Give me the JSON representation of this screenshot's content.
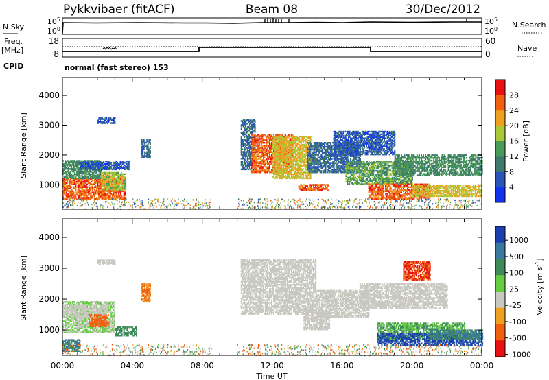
{
  "header": {
    "station": "Pykkvibaer (fitACF)",
    "beam": "Beam 08",
    "date": "30/Dec/2012"
  },
  "side_labels": {
    "nsky": "N.Sky",
    "nsky_hi": "10^5",
    "nsky_lo": "10^0",
    "nsearch": "N.Search",
    "nsearch_hi": "10^5",
    "nsearch_lo": "10^0",
    "freq": "Freq.",
    "freq_unit": "[MHz]",
    "freq_hi": "18",
    "freq_lo": "8",
    "nave": "Nave",
    "nave_hi": "60",
    "nave_lo": "0",
    "cpid": "CPID",
    "cpid_text": "normal (fast stereo) 153"
  },
  "chart_data": [
    {
      "type": "heatmap",
      "title": "",
      "quantity": "Power",
      "xlabel": "Time UT",
      "ylabel": "Slant Range [km]",
      "colorbar_label": "Power [dB]",
      "x_ticks": [
        "00:00",
        "04:00",
        "08:00",
        "12:00",
        "16:00",
        "20:00",
        "00:00"
      ],
      "x_range_hours": [
        0,
        24
      ],
      "y_ticks": [
        1000,
        2000,
        3000,
        4000
      ],
      "y_range_km": [
        180,
        4600
      ],
      "colorbar_ticks": [
        "4",
        "8",
        "12",
        "16",
        "20",
        "24",
        "28"
      ],
      "colorbar_colors": [
        "#1133ee",
        "#2a55b8",
        "#3e7a6a",
        "#4a9a58",
        "#aac838",
        "#f0a020",
        "#f06010",
        "#e81010"
      ],
      "regions": [
        {
          "t": [
            0.0,
            3.6
          ],
          "r": [
            500,
            1200
          ],
          "level": 26
        },
        {
          "t": [
            0.0,
            2.2
          ],
          "r": [
            1200,
            1800
          ],
          "level": 12
        },
        {
          "t": [
            2.2,
            3.6
          ],
          "r": [
            800,
            1400
          ],
          "level": 18
        },
        {
          "t": [
            1.0,
            3.8
          ],
          "r": [
            1500,
            1800
          ],
          "level": 6
        },
        {
          "t": [
            2.0,
            3.0
          ],
          "r": [
            3050,
            3250
          ],
          "level": 6
        },
        {
          "t": [
            4.5,
            5.0
          ],
          "r": [
            1900,
            2500
          ],
          "level": 8
        },
        {
          "t": [
            10.2,
            11.0
          ],
          "r": [
            1500,
            3200
          ],
          "level": 8
        },
        {
          "t": [
            10.8,
            13.2
          ],
          "r": [
            1400,
            2700
          ],
          "level": 26
        },
        {
          "t": [
            12.0,
            14.2
          ],
          "r": [
            1200,
            2600
          ],
          "level": 20
        },
        {
          "t": [
            13.5,
            15.2
          ],
          "r": [
            800,
            1000
          ],
          "level": 26
        },
        {
          "t": [
            14.0,
            17.0
          ],
          "r": [
            1400,
            2400
          ],
          "level": 8
        },
        {
          "t": [
            16.2,
            20.0
          ],
          "r": [
            1000,
            1800
          ],
          "level": 14
        },
        {
          "t": [
            17.5,
            21.0
          ],
          "r": [
            500,
            1000
          ],
          "level": 26
        },
        {
          "t": [
            20.0,
            24.0
          ],
          "r": [
            600,
            1000
          ],
          "level": 20
        },
        {
          "t": [
            19.0,
            24.0
          ],
          "r": [
            1300,
            2000
          ],
          "level": 12
        },
        {
          "t": [
            15.5,
            19.0
          ],
          "r": [
            2000,
            2800
          ],
          "level": 6
        }
      ]
    },
    {
      "type": "heatmap",
      "title": "",
      "quantity": "Velocity",
      "xlabel": "Time UT",
      "ylabel": "Slant Range [km]",
      "colorbar_label": "Velocity [m s^-1]",
      "x_ticks": [
        "00:00",
        "04:00",
        "08:00",
        "12:00",
        "16:00",
        "20:00",
        "00:00"
      ],
      "x_range_hours": [
        0,
        24
      ],
      "y_ticks": [
        1000,
        2000,
        3000,
        4000
      ],
      "y_range_km": [
        180,
        4600
      ],
      "colorbar_ticks": [
        "1000",
        "500",
        "100",
        "25",
        "-25",
        "-100",
        "-500",
        "-1000"
      ],
      "colorbar_colors": [
        "#1c3fb0",
        "#3a78a0",
        "#3e8a5a",
        "#66cc44",
        "#c8c8c0",
        "#f0a020",
        "#f06010",
        "#e81010"
      ],
      "regions": [
        {
          "t": [
            0.0,
            3.0
          ],
          "r": [
            900,
            1900
          ],
          "level": 25
        },
        {
          "t": [
            0.0,
            2.5
          ],
          "r": [
            1400,
            1800
          ],
          "level": 0
        },
        {
          "t": [
            1.5,
            2.6
          ],
          "r": [
            1100,
            1500
          ],
          "level": -200
        },
        {
          "t": [
            3.0,
            4.2
          ],
          "r": [
            800,
            1100
          ],
          "level": 150
        },
        {
          "t": [
            0.0,
            1.0
          ],
          "r": [
            300,
            700
          ],
          "level": 300
        },
        {
          "t": [
            2.0,
            3.0
          ],
          "r": [
            3100,
            3250
          ],
          "level": 0
        },
        {
          "t": [
            4.5,
            5.0
          ],
          "r": [
            1900,
            2500
          ],
          "level": -60
        },
        {
          "t": [
            10.2,
            14.5
          ],
          "r": [
            1500,
            3300
          ],
          "level": 0
        },
        {
          "t": [
            13.8,
            15.3
          ],
          "r": [
            1000,
            1600
          ],
          "level": 0
        },
        {
          "t": [
            14.5,
            17.5
          ],
          "r": [
            1400,
            2300
          ],
          "level": 0
        },
        {
          "t": [
            17.0,
            22.0
          ],
          "r": [
            1700,
            2500
          ],
          "level": 0
        },
        {
          "t": [
            18.0,
            23.0
          ],
          "r": [
            700,
            1200
          ],
          "level": 60
        },
        {
          "t": [
            18.0,
            24.0
          ],
          "r": [
            500,
            900
          ],
          "level": 900
        },
        {
          "t": [
            21.0,
            24.0
          ],
          "r": [
            700,
            1000
          ],
          "level": 300
        },
        {
          "t": [
            19.5,
            21.0
          ],
          "r": [
            2600,
            3200
          ],
          "level": -300
        }
      ]
    }
  ]
}
